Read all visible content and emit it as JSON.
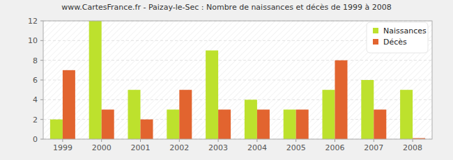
{
  "chart_data": {
    "type": "bar",
    "title": "www.CartesFrance.fr - Paizay-le-Sec : Nombre de naissances et décès de 1999 à 2008",
    "categories": [
      "1999",
      "2000",
      "2001",
      "2002",
      "2003",
      "2004",
      "2005",
      "2006",
      "2007",
      "2008"
    ],
    "series": [
      {
        "name": "Naissances",
        "color": "#bde12d",
        "values": [
          2,
          12,
          5,
          3,
          9,
          4,
          3,
          5,
          6,
          5
        ]
      },
      {
        "name": "Décès",
        "color": "#e2642f",
        "values": [
          7,
          3,
          2,
          5,
          3,
          3,
          3,
          8,
          3,
          0.1
        ]
      }
    ],
    "ylim": [
      0,
      12
    ],
    "yticks": [
      0,
      2,
      4,
      6,
      8,
      10,
      12
    ],
    "grid": true,
    "legend": "top-right"
  }
}
